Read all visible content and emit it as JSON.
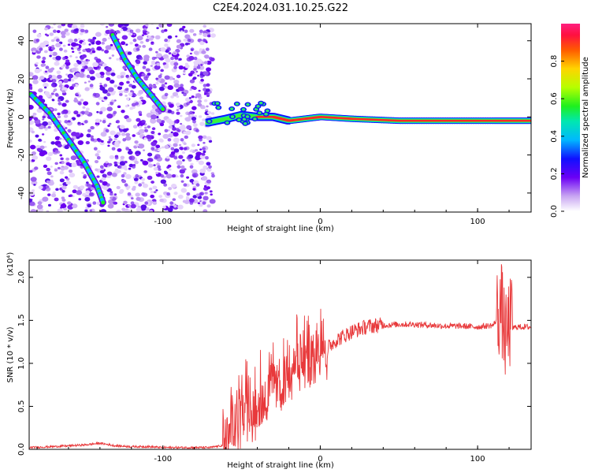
{
  "title": "C2E4.2024.031.10.25.G22",
  "chart_data": [
    {
      "type": "heatmap",
      "xlabel": "Height of straight line (km)",
      "ylabel": "Frequency (Hz)",
      "xlim": [
        -185,
        134
      ],
      "ylim": [
        -50,
        49
      ],
      "x_ticks": [
        -100,
        0,
        100
      ],
      "x_tick_labels": [
        "-100",
        "0",
        "100"
      ],
      "y_ticks": [
        -40,
        -20,
        0,
        20,
        40
      ],
      "y_tick_labels": [
        "-40",
        "-20",
        "0",
        "20",
        "40"
      ],
      "colorbar": {
        "label": "Normalized spectral amplitude",
        "range": [
          0,
          1
        ],
        "ticks": [
          0.0,
          0.2,
          0.4,
          0.6,
          0.8
        ],
        "tick_labels": [
          "0.0",
          "0.2",
          "0.4",
          "0.6",
          "0.8"
        ]
      },
      "features": [
        {
          "name": "descending trace 1",
          "x": [
            -184,
            -172,
            -160,
            -150,
            -142,
            -138
          ],
          "y": [
            12,
            2,
            -12,
            -24,
            -36,
            -45
          ]
        },
        {
          "name": "descending trace 2",
          "x": [
            -132,
            -124,
            -116,
            -108,
            -100
          ],
          "y": [
            43,
            30,
            20,
            12,
            4
          ]
        },
        {
          "name": "main signal",
          "x": [
            -72,
            -60,
            -50,
            -40,
            -30,
            -20,
            -10,
            0,
            20,
            50,
            80,
            110,
            134
          ],
          "y": [
            -3,
            -1,
            1,
            0,
            0,
            -2,
            -1,
            0,
            -1,
            -2,
            -2,
            -2,
            -2
          ]
        }
      ],
      "grid": false
    },
    {
      "type": "line",
      "xlabel": "Height of straight line (km)",
      "ylabel": "SNR (10 * v/v)",
      "y_scale_label": "(x10⁴)",
      "xlim": [
        -185,
        134
      ],
      "ylim": [
        0,
        2.2
      ],
      "x_ticks": [
        -100,
        0,
        100
      ],
      "x_tick_labels": [
        "-100",
        "0",
        "100"
      ],
      "y_ticks": [
        0.0,
        0.5,
        1.0,
        1.5,
        2.0
      ],
      "y_tick_labels": [
        "0.0",
        "0.5",
        "1.0",
        "1.5",
        "2.0"
      ],
      "color": "#e8393b",
      "series": [
        {
          "x": [
            -185,
            -170,
            -160,
            -150,
            -140,
            -130,
            -120,
            -110,
            -100,
            -90,
            -80,
            -70,
            -60,
            -55,
            -50,
            -45,
            -40,
            -35,
            -30,
            -25,
            -20,
            -15,
            -10,
            -5,
            0,
            5,
            10,
            20,
            30,
            40,
            50,
            60,
            70,
            80,
            90,
            100,
            110,
            115,
            118,
            120,
            125,
            134
          ],
          "y": [
            0.02,
            0.03,
            0.04,
            0.05,
            0.07,
            0.04,
            0.03,
            0.03,
            0.02,
            0.02,
            0.02,
            0.02,
            0.05,
            0.2,
            0.38,
            0.45,
            0.5,
            0.58,
            0.65,
            0.75,
            0.85,
            0.95,
            1.02,
            1.05,
            1.1,
            1.18,
            1.26,
            1.36,
            1.42,
            1.44,
            1.45,
            1.45,
            1.44,
            1.43,
            1.43,
            1.42,
            1.44,
            1.6,
            1.2,
            1.4,
            1.42,
            1.42
          ]
        }
      ],
      "grid": false
    }
  ]
}
